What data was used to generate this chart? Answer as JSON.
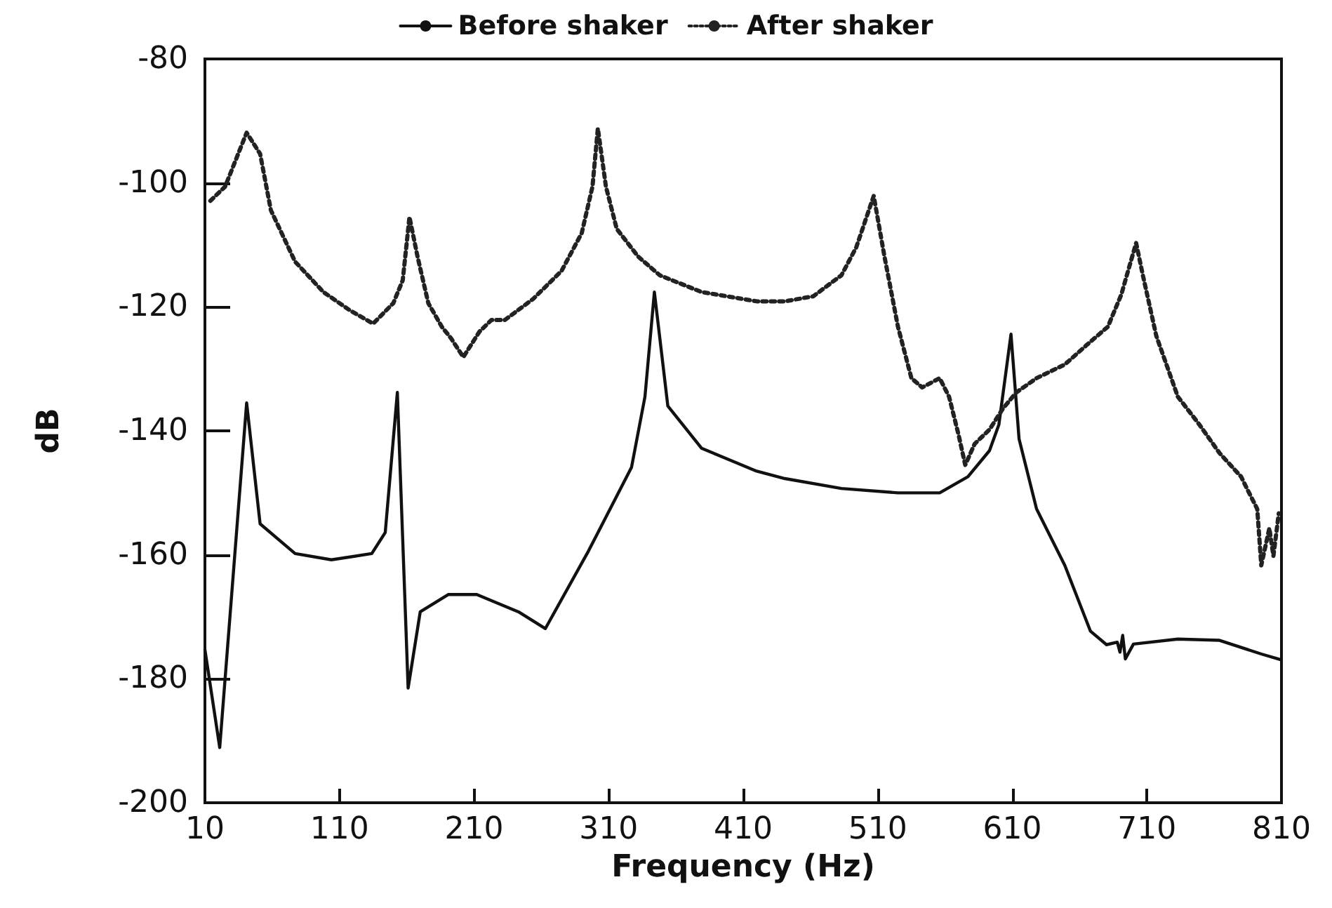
{
  "chart_data": {
    "type": "line",
    "xlabel": "Frequency (Hz)",
    "ylabel": "dB",
    "xlim": [
      10,
      810
    ],
    "xticks": [
      10,
      110,
      210,
      310,
      410,
      510,
      610,
      710,
      810
    ],
    "ylim": [
      -200,
      -80
    ],
    "yticks": [
      -200,
      -180,
      -160,
      -140,
      -120,
      -100,
      -80
    ],
    "grid": false,
    "legend": "top",
    "marker": "none",
    "series": [
      {
        "name": "Before shaker",
        "color": "#111111",
        "line_style": "solid",
        "x": [
          10,
          21,
          41,
          51,
          77,
          104,
          134,
          144,
          153,
          161,
          170,
          191,
          212,
          243,
          263,
          295,
          327,
          337,
          344,
          354,
          379,
          420,
          441,
          483,
          525,
          556,
          577,
          593,
          600,
          609,
          615,
          628,
          649,
          668,
          680,
          688,
          690,
          692,
          694,
          700,
          733,
          764,
          795,
          809
        ],
        "values": [
          -175.3,
          -191.1,
          -135.5,
          -155,
          -159.8,
          -160.8,
          -159.8,
          -156.4,
          -133.8,
          -181.5,
          -169.2,
          -166.4,
          -166.4,
          -169.2,
          -171.9,
          -159.4,
          -145.9,
          -134.5,
          -117.6,
          -136,
          -142.8,
          -146.5,
          -147.7,
          -149.3,
          -150,
          -150,
          -147.4,
          -143.2,
          -139,
          -124.4,
          -141.3,
          -152.6,
          -161.7,
          -172.3,
          -174.5,
          -174.1,
          -175.7,
          -173,
          -176.8,
          -174.4,
          -173.6,
          -173.8,
          -176,
          -176.9
        ]
      },
      {
        "name": "After shaker",
        "color": "#222222",
        "line_style": "dotted",
        "x": [
          14,
          25,
          41,
          51,
          59,
          77,
          98,
          118,
          135,
          150,
          157,
          162,
          168,
          176,
          186,
          193,
          202,
          214,
          223,
          233,
          254,
          275,
          290,
          298,
          302,
          308,
          316,
          332,
          348,
          379,
          420,
          441,
          462,
          483,
          494,
          507,
          515,
          525,
          535,
          543,
          556,
          563,
          570,
          575,
          582,
          593,
          603,
          613,
          628,
          649,
          665,
          681,
          691,
          696,
          702,
          707,
          717,
          733,
          749,
          764,
          780,
          785,
          792,
          795,
          801,
          804,
          808
        ],
        "values": [
          -102.9,
          -100.6,
          -91.9,
          -95.3,
          -104.4,
          -112.7,
          -117.6,
          -120.6,
          -122.7,
          -119.4,
          -115.7,
          -105.5,
          -111.9,
          -119.4,
          -123.2,
          -125.1,
          -128.1,
          -124,
          -122.1,
          -122.1,
          -118.7,
          -114.2,
          -108.1,
          -100.6,
          -91.2,
          -100.6,
          -107.4,
          -111.9,
          -114.9,
          -117.6,
          -119.1,
          -119.1,
          -118.3,
          -114.9,
          -110.4,
          -102.1,
          -111.9,
          -123.2,
          -131.5,
          -133,
          -131.5,
          -134.5,
          -140.6,
          -145.5,
          -142.1,
          -139.8,
          -136.4,
          -133.8,
          -131.5,
          -129.3,
          -126.2,
          -123.2,
          -118,
          -114.2,
          -109.7,
          -114.9,
          -124.7,
          -134.5,
          -139,
          -143.6,
          -147.4,
          -149.6,
          -152.6,
          -161.7,
          -155.7,
          -160.2,
          -153.3
        ]
      }
    ]
  }
}
